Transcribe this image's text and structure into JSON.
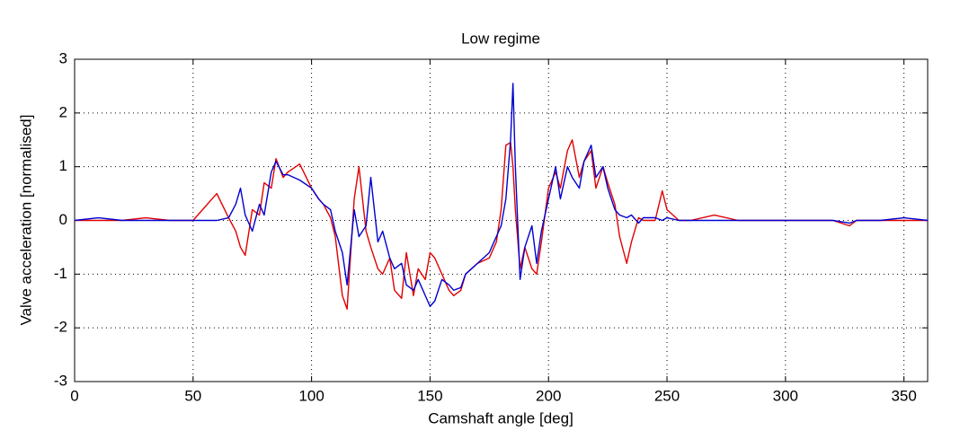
{
  "chart_data": {
    "type": "line",
    "title": "Low regime",
    "x_label": "Camshaft angle [deg]",
    "y_label": "Valve acceleration [normalised]",
    "x": [
      0,
      10,
      20,
      30,
      40,
      50,
      60,
      65,
      68,
      70,
      72,
      75,
      78,
      80,
      83,
      85,
      88,
      90,
      95,
      100,
      103,
      105,
      108,
      110,
      113,
      115,
      118,
      120,
      123,
      125,
      128,
      130,
      133,
      135,
      138,
      140,
      143,
      145,
      148,
      150,
      152,
      155,
      158,
      160,
      163,
      165,
      170,
      175,
      178,
      180,
      182,
      184,
      185,
      186,
      188,
      190,
      193,
      195,
      197,
      200,
      203,
      205,
      208,
      210,
      213,
      215,
      218,
      220,
      223,
      225,
      228,
      230,
      233,
      235,
      238,
      240,
      245,
      248,
      250,
      255,
      260,
      270,
      280,
      290,
      300,
      310,
      320,
      327,
      330,
      340,
      350,
      360
    ],
    "series": [
      {
        "color": "#e00000",
        "values": [
          0,
          0,
          0,
          0.05,
          0,
          0,
          0.5,
          0.05,
          -0.2,
          -0.5,
          -0.65,
          0.2,
          0.1,
          0.7,
          0.6,
          1.15,
          0.8,
          0.9,
          1.05,
          0.6,
          0.4,
          0.3,
          0.05,
          -0.3,
          -1.4,
          -1.65,
          0.4,
          1.0,
          -0.2,
          -0.5,
          -0.9,
          -1.0,
          -0.7,
          -1.3,
          -1.45,
          -0.6,
          -1.4,
          -0.9,
          -1.1,
          -0.6,
          -0.7,
          -1.0,
          -1.3,
          -1.4,
          -1.3,
          -1.0,
          -0.8,
          -0.7,
          -0.4,
          0.2,
          1.4,
          1.45,
          1.0,
          0.2,
          -0.9,
          -0.5,
          -0.9,
          -1.0,
          -0.4,
          0.6,
          0.9,
          0.6,
          1.3,
          1.5,
          0.8,
          1.1,
          1.3,
          0.6,
          1.0,
          0.7,
          0.3,
          -0.3,
          -0.8,
          -0.4,
          0.05,
          0,
          0,
          0.55,
          0.2,
          0,
          0,
          0.1,
          0,
          0,
          0,
          0,
          0,
          -0.1,
          0,
          0,
          0,
          0
        ]
      },
      {
        "color": "#0000d0",
        "values": [
          0,
          0.05,
          0,
          0,
          0,
          0,
          0,
          0.05,
          0.3,
          0.6,
          0.1,
          -0.2,
          0.3,
          0.1,
          0.9,
          1.1,
          0.85,
          0.85,
          0.75,
          0.6,
          0.4,
          0.3,
          0.2,
          -0.2,
          -0.6,
          -1.2,
          0.2,
          -0.3,
          -0.1,
          0.8,
          -0.4,
          -0.2,
          -0.7,
          -0.9,
          -0.8,
          -1.2,
          -1.3,
          -1.1,
          -1.4,
          -1.6,
          -1.5,
          -1.1,
          -1.2,
          -1.3,
          -1.25,
          -1.0,
          -0.8,
          -0.6,
          -0.3,
          -0.1,
          0.4,
          1.5,
          2.55,
          1.0,
          -1.1,
          -0.5,
          -0.1,
          -0.8,
          -0.2,
          0.4,
          1.0,
          0.4,
          1.0,
          0.8,
          0.6,
          1.1,
          1.4,
          0.8,
          1.0,
          0.6,
          0.2,
          0.1,
          0.05,
          0.1,
          -0.05,
          0.05,
          0.05,
          0,
          0.05,
          0,
          0,
          0,
          0,
          0,
          0,
          0,
          0,
          -0.05,
          0,
          0,
          0.05,
          0
        ]
      }
    ],
    "xlim": [
      0,
      360
    ],
    "xticks": [
      0,
      50,
      100,
      150,
      200,
      250,
      300,
      350
    ],
    "ylim": [
      -3,
      3
    ],
    "yticks": [
      -3,
      -2,
      -1,
      0,
      1,
      2,
      3
    ],
    "grid": true
  }
}
